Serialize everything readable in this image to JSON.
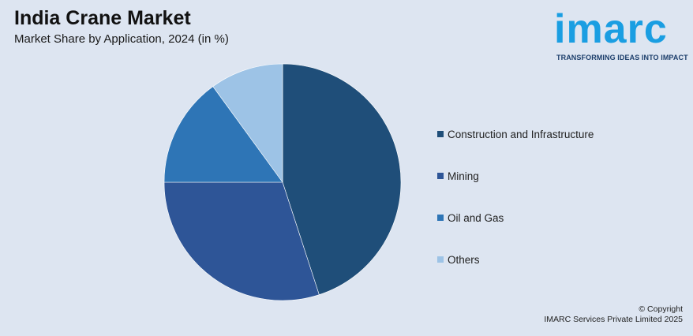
{
  "header": {
    "title": "India Crane Market",
    "subtitle": "Market Share by Application, 2024 (in %)"
  },
  "logo": {
    "wordmark": "imarc",
    "tagline": "TRANSFORMING IDEAS INTO IMPACT",
    "color": "#1a9ee2"
  },
  "chart_data": {
    "type": "pie",
    "title": "India Crane Market",
    "subtitle": "Market Share by Application, 2024 (in %)",
    "start_angle_deg": 0,
    "direction": "clockwise",
    "legend_position": "right",
    "slices": [
      {
        "label": "Construction and Infrastructure",
        "value": 45,
        "color": "#1f4e79"
      },
      {
        "label": "Mining",
        "value": 30,
        "color": "#2e5597"
      },
      {
        "label": "Oil and Gas",
        "value": 15,
        "color": "#2e75b6"
      },
      {
        "label": "Others",
        "value": 10,
        "color": "#9dc3e6"
      }
    ]
  },
  "footer": {
    "copyright_line1": "© Copyright",
    "copyright_line2": "IMARC Services Private Limited 2025"
  }
}
